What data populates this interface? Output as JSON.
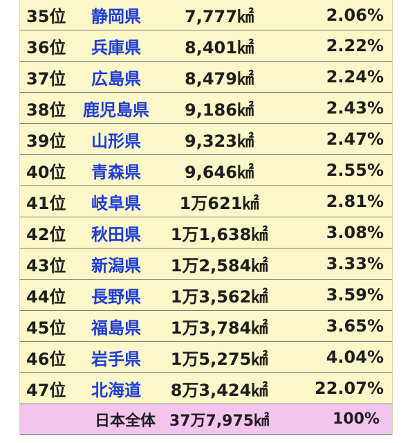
{
  "rows": [
    {
      "rank": "35位",
      "prefecture": "静岡県",
      "area": "7,777㎢",
      "share": "2.06%"
    },
    {
      "rank": "36位",
      "prefecture": "兵庫県",
      "area": "8,401㎢",
      "share": "2.22%"
    },
    {
      "rank": "37位",
      "prefecture": "広島県",
      "area": "8,479㎢",
      "share": "2.24%"
    },
    {
      "rank": "38位",
      "prefecture": "鹿児島県",
      "area": "9,186㎢",
      "share": "2.43%"
    },
    {
      "rank": "39位",
      "prefecture": "山形県",
      "area": "9,323㎢",
      "share": "2.47%"
    },
    {
      "rank": "40位",
      "prefecture": "青森県",
      "area": "9,646㎢",
      "share": "2.55%"
    },
    {
      "rank": "41位",
      "prefecture": "岐阜県",
      "area": "1万621㎢",
      "share": "2.81%"
    },
    {
      "rank": "42位",
      "prefecture": "秋田県",
      "area": "1万1,638㎢",
      "share": "3.08%"
    },
    {
      "rank": "43位",
      "prefecture": "新潟県",
      "area": "1万2,584㎢",
      "share": "3.33%"
    },
    {
      "rank": "44位",
      "prefecture": "長野県",
      "area": "1万3,562㎢",
      "share": "3.59%"
    },
    {
      "rank": "45位",
      "prefecture": "福島県",
      "area": "1万3,784㎢",
      "share": "3.65%"
    },
    {
      "rank": "46位",
      "prefecture": "岩手県",
      "area": "1万5,275㎢",
      "share": "4.04%"
    },
    {
      "rank": "47位",
      "prefecture": "北海道",
      "area": "8万3,424㎢",
      "share": "22.07%"
    }
  ],
  "total": {
    "label": "日本全体",
    "area": "37万7,975㎢",
    "share": "100%"
  },
  "colors": {
    "row_background": "#fbf7c8",
    "total_background": "#f2c4ee",
    "prefecture_text": "#1d3cd8",
    "body_text": "#1e1e1e"
  }
}
